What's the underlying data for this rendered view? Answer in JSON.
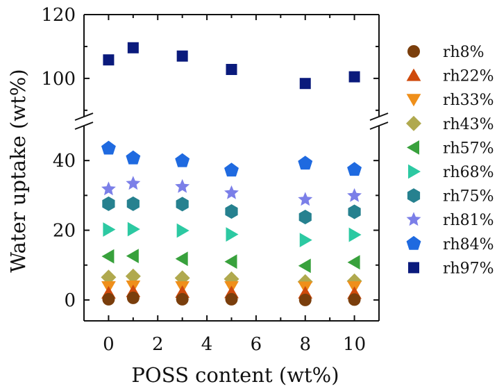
{
  "chart_data": {
    "type": "scatter",
    "xlabel": "POSS content (wt%)",
    "ylabel": "Water uptake (wt%)",
    "xlim": [
      -1,
      11
    ],
    "x_ticks": [
      0,
      2,
      4,
      6,
      8,
      10
    ],
    "x_tick_labels": [
      "0",
      "2",
      "4",
      "6",
      "8",
      "10"
    ],
    "y_axis_broken": true,
    "y_segments": [
      {
        "range": [
          -6,
          50
        ],
        "ticks": [
          0,
          20,
          40
        ],
        "tick_labels": [
          "0",
          "20",
          "40"
        ]
      },
      {
        "range": [
          88,
          120
        ],
        "ticks": [
          100,
          120
        ],
        "tick_labels": [
          "100",
          "120"
        ]
      }
    ],
    "x": [
      0,
      1,
      3,
      5,
      8,
      10
    ],
    "series": [
      {
        "name": "rh8%",
        "marker": "circle",
        "color": "#7a3e0c",
        "values": [
          0.2,
          0.6,
          0.2,
          0.2,
          0.0,
          0.1
        ]
      },
      {
        "name": "rh22%",
        "marker": "triangle-up",
        "color": "#cf4a0c",
        "values": [
          2.0,
          2.4,
          2.2,
          2.1,
          2.0,
          1.9
        ]
      },
      {
        "name": "rh33%",
        "marker": "triangle-down",
        "color": "#ef8f1a",
        "values": [
          3.8,
          4.0,
          3.8,
          3.8,
          3.7,
          3.8
        ]
      },
      {
        "name": "rh43%",
        "marker": "diamond",
        "color": "#b0a94e",
        "values": [
          6.5,
          6.8,
          6.3,
          6.0,
          5.2,
          5.4
        ]
      },
      {
        "name": "rh57%",
        "marker": "triangle-left",
        "color": "#38a13c",
        "values": [
          12.5,
          12.6,
          11.8,
          11.0,
          9.8,
          10.8
        ]
      },
      {
        "name": "rh68%",
        "marker": "triangle-right",
        "color": "#2cc9a2",
        "values": [
          20.2,
          20.3,
          19.9,
          18.8,
          17.2,
          18.7
        ]
      },
      {
        "name": "rh75%",
        "marker": "hexagon",
        "color": "#26818f",
        "values": [
          27.6,
          27.6,
          27.5,
          25.4,
          23.8,
          25.3
        ]
      },
      {
        "name": "rh81%",
        "marker": "star",
        "color": "#7b7fe8",
        "values": [
          31.8,
          33.4,
          32.5,
          30.7,
          28.8,
          29.9
        ]
      },
      {
        "name": "rh84%",
        "marker": "pentagon",
        "color": "#1f6ae0",
        "values": [
          43.5,
          40.7,
          39.9,
          37.2,
          39.2,
          37.4
        ]
      },
      {
        "name": "rh97%",
        "marker": "square",
        "color": "#0a1a7c",
        "values": [
          105.8,
          109.6,
          107.0,
          102.8,
          98.4,
          100.5
        ]
      }
    ],
    "legend": "right",
    "grid": false
  }
}
